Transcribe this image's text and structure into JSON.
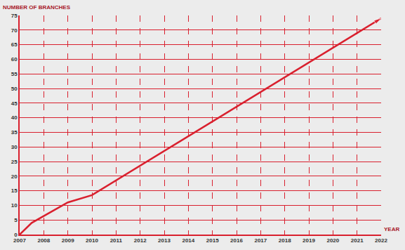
{
  "chart_data": {
    "type": "line",
    "x_label": "YEAR",
    "y_label": "NUMBER OF BRANCHES",
    "x": [
      2007,
      2007.5,
      2009,
      2010,
      2022
    ],
    "values": [
      0,
      4,
      11,
      13.5,
      74
    ],
    "color": "#d9202e",
    "marker": "arrow",
    "xlim": [
      2007,
      2022
    ],
    "xticks": [
      2007,
      2008,
      2009,
      2010,
      2011,
      2012,
      2013,
      2014,
      2015,
      2016,
      2017,
      2018,
      2019,
      2020,
      2021,
      2022
    ],
    "ylim": [
      0,
      75
    ],
    "yticks": [
      0,
      5,
      10,
      15,
      20,
      25,
      30,
      35,
      40,
      45,
      50,
      55,
      60,
      65,
      70,
      75
    ],
    "grid": true
  }
}
